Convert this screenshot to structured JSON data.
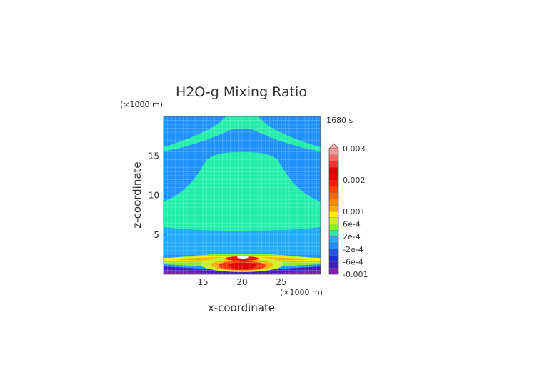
{
  "chart_data": {
    "type": "heatmap",
    "title": "H2O-g Mixing Ratio",
    "time_label": "1680 s",
    "xlabel": "x-coordinate",
    "ylabel": "z-coordinate",
    "x_units": "(×1000 m)",
    "y_units": "(×1000 m)",
    "xlim": [
      10,
      30
    ],
    "ylim": [
      0,
      20
    ],
    "x_ticks": [
      15,
      20,
      25
    ],
    "x_tick_labels": [
      "15",
      "20",
      "25"
    ],
    "y_ticks": [
      5,
      10,
      15
    ],
    "y_tick_labels": [
      "5",
      "10",
      "15"
    ],
    "grid": true,
    "legend_placement": "right",
    "colorbar": {
      "levels": [
        -0.001,
        -0.0008,
        -0.0006,
        -0.0004,
        -0.0002,
        0,
        0.0002,
        0.0004,
        0.0006,
        0.0008,
        0.001,
        0.0012,
        0.0014,
        0.0016,
        0.0018,
        0.002,
        0.0022,
        0.0024,
        0.0026,
        0.0028,
        0.003
      ],
      "colors": [
        "#7b1fb8",
        "#3f1fc0",
        "#1f2fd8",
        "#2255ee",
        "#1e90ff",
        "#22aaff",
        "#22eeaa",
        "#88ee22",
        "#ccee22",
        "#ffee00",
        "#ffaa00",
        "#ff8800",
        "#ff6600",
        "#ff4400",
        "#ff1a00",
        "#ee0000",
        "#dd0000",
        "#ff3333",
        "#ff6666",
        "#ff9999",
        "#ffb0b0"
      ],
      "tick_values": [
        0.003,
        0.002,
        0.001,
        0.0006,
        0.0002,
        -0.0002,
        -0.0006,
        -0.001
      ],
      "tick_labels": [
        "0.003",
        "0.002",
        "0.001",
        "6e-4",
        "2e-4",
        "-2e-4",
        "-6e-4",
        "-0.001"
      ]
    },
    "field_bands": [
      {
        "name": "background",
        "level_index": 4,
        "z_range": [
          0,
          20
        ]
      },
      {
        "name": "upper green region",
        "level_index": 6,
        "z_range": [
          16,
          20
        ]
      },
      {
        "name": "middle green region",
        "level_index": 6,
        "z_range": [
          6,
          15.2
        ]
      },
      {
        "name": "low cyan layer",
        "level_index": 5,
        "z_range": [
          2.5,
          6
        ]
      },
      {
        "name": "moist layer",
        "level_index": 8,
        "z_range": [
          1.7,
          2.3
        ]
      },
      {
        "name": "surface dry layer",
        "level_index": 1,
        "z_range": [
          0,
          0.8
        ]
      },
      {
        "name": "central moist core",
        "level_index": 15,
        "center": [
          20,
          0.9
        ]
      }
    ]
  }
}
